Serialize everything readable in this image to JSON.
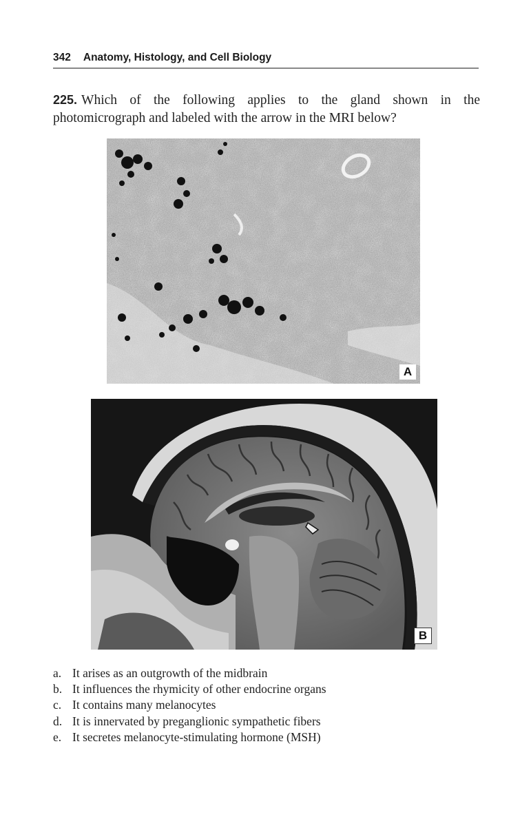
{
  "header": {
    "page_number": "342",
    "title": "Anatomy, Histology, and Cell Biology"
  },
  "question": {
    "number": "225.",
    "text": "Which of the following applies to the gland shown in the photomicrograph and labeled with the arrow in the MRI below?"
  },
  "figures": {
    "a": {
      "label": "A"
    },
    "b": {
      "label": "B"
    }
  },
  "options": [
    {
      "letter": "a.",
      "text": "It arises as an outgrowth of the midbrain"
    },
    {
      "letter": "b.",
      "text": "It influences the rhymicity of other endocrine organs"
    },
    {
      "letter": "c.",
      "text": "It contains many melanocytes"
    },
    {
      "letter": "d.",
      "text": "It is innervated by preganglionic sympathetic fibers"
    },
    {
      "letter": "e.",
      "text": "It secretes melanocyte-stimulating hormone (MSH)"
    }
  ]
}
